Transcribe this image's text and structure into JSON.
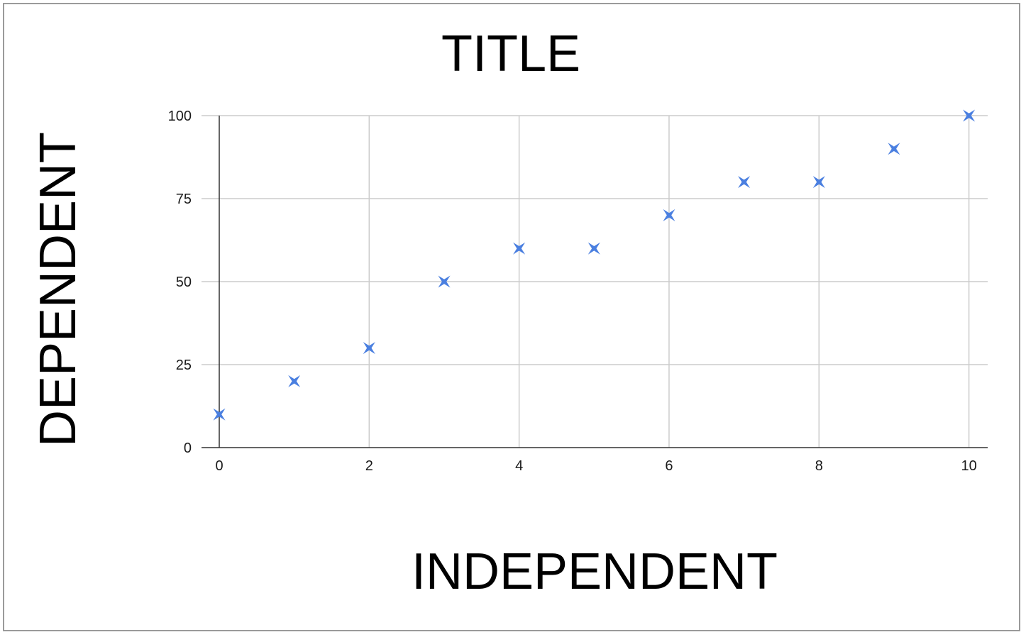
{
  "chart_data": {
    "type": "scatter",
    "title": "TITLE",
    "xlabel": "INDEPENDENT",
    "ylabel": "DEPENDENT",
    "x": [
      0,
      1,
      2,
      3,
      4,
      5,
      6,
      7,
      8,
      9,
      10
    ],
    "y": [
      10,
      20,
      30,
      50,
      60,
      60,
      70,
      80,
      80,
      90,
      100
    ],
    "xlim": [
      0,
      10.25
    ],
    "ylim": [
      0,
      100
    ],
    "x_ticks": [
      0,
      2,
      4,
      6,
      8,
      10
    ],
    "y_ticks": [
      0,
      25,
      50,
      75,
      100
    ],
    "grid": true,
    "legend": "none",
    "marker": "star-x",
    "colors": {
      "series": "#4a7fe0",
      "grid": "#cccccc",
      "axis": "#333333"
    }
  }
}
